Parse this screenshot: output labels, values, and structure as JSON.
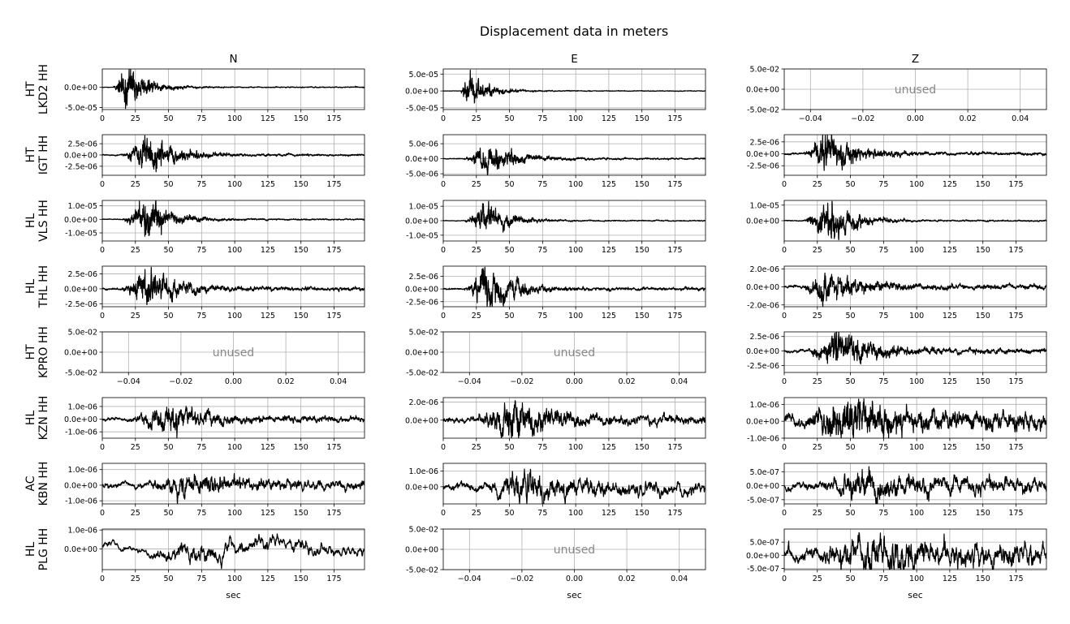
{
  "suptitle": "Displacement data in meters",
  "column_titles": [
    "N",
    "E",
    "Z"
  ],
  "xlabel": "sec",
  "unused_label": "unused",
  "station_labels": [
    [
      "HT",
      "LKD2 HH"
    ],
    [
      "HT",
      "IGT HH"
    ],
    [
      "HL",
      "VLS HH"
    ],
    [
      "HL",
      "THL HH"
    ],
    [
      "HT",
      "KPRO HH"
    ],
    [
      "HL",
      "KZN HH"
    ],
    [
      "AC",
      "KBN HH"
    ],
    [
      "HL",
      "PLG HH"
    ]
  ],
  "colors": {
    "trace": "#000000",
    "grid": "#b0b0b0",
    "unused_text": "#888888"
  },
  "chart_data": {
    "type": "line",
    "grid": true,
    "time_ticks": [
      0,
      25,
      50,
      75,
      100,
      125,
      150,
      175
    ],
    "time_tick_labels": [
      "0",
      "25",
      "50",
      "75",
      "100",
      "125",
      "150",
      "175"
    ],
    "time_range": [
      0,
      198
    ],
    "unused_xticks": [
      -0.04,
      -0.02,
      0,
      0.02,
      0.04
    ],
    "unused_xtick_labels": [
      "−0.04",
      "−0.02",
      "0.00",
      "0.02",
      "0.04"
    ],
    "unused_xlim": [
      -0.05,
      0.05
    ],
    "unused_yticks": [
      -0.05,
      0,
      0.05
    ],
    "unused_ytick_labels": [
      "-5.0e-02",
      "0.0e+00",
      "5.0e-02"
    ],
    "unused_ylim": [
      -0.05,
      0.05
    ],
    "panels": [
      [
        {
          "used": true,
          "ylim": [
            -5.5e-05,
            4.5e-05
          ],
          "yticks": [
            -5e-05,
            0
          ],
          "ytick_labels": [
            "-5.0e-05",
            "0.0e+00"
          ],
          "peak_time": 18,
          "onset": 8,
          "decay": 14,
          "noise": 0.02,
          "seed": 11,
          "osc": 0.8
        },
        {
          "used": true,
          "ylim": [
            -5.5e-05,
            6.5e-05
          ],
          "yticks": [
            -5e-05,
            0,
            5e-05
          ],
          "ytick_labels": [
            "-5.0e-05",
            "0.0e+00",
            "5.0e-05"
          ],
          "peak_time": 17,
          "onset": 13,
          "decay": 14,
          "noise": 0.02,
          "seed": 12,
          "osc": 0.8
        },
        {
          "used": false
        }
      ],
      [
        {
          "used": true,
          "ylim": [
            -4.5e-06,
            4.5e-06
          ],
          "yticks": [
            -2.5e-06,
            0,
            2.5e-06
          ],
          "ytick_labels": [
            "-2.5e-06",
            "0.0e+00",
            "2.5e-06"
          ],
          "peak_time": 33,
          "onset": 15,
          "decay": 20,
          "noise": 0.05,
          "seed": 21,
          "osc": 0.7
        },
        {
          "used": true,
          "ylim": [
            -5.5e-06,
            8e-06
          ],
          "yticks": [
            -5e-06,
            0,
            5e-06
          ],
          "ytick_labels": [
            "-5.0e-06",
            "0.0e+00",
            "5.0e-06"
          ],
          "peak_time": 34,
          "onset": 16,
          "decay": 20,
          "noise": 0.05,
          "seed": 22,
          "osc": 0.7
        },
        {
          "used": true,
          "ylim": [
            -4.5e-06,
            4e-06
          ],
          "yticks": [
            -2.5e-06,
            0,
            2.5e-06
          ],
          "ytick_labels": [
            "-2.5e-06",
            "0.0e+00",
            "2.5e-06"
          ],
          "peak_time": 32,
          "onset": 15,
          "decay": 20,
          "noise": 0.06,
          "seed": 23,
          "osc": 0.7
        }
      ],
      [
        {
          "used": true,
          "ylim": [
            -1.6e-05,
            1.4e-05
          ],
          "yticks": [
            -1e-05,
            0,
            1e-05
          ],
          "ytick_labels": [
            "-1.0e-05",
            "0.0e+00",
            "1.0e-05"
          ],
          "peak_time": 33,
          "onset": 15,
          "decay": 16,
          "noise": 0.03,
          "seed": 31,
          "osc": 0.7
        },
        {
          "used": true,
          "ylim": [
            -1.4e-05,
            1.4e-05
          ],
          "yticks": [
            -1e-05,
            0,
            1e-05
          ],
          "ytick_labels": [
            "-1.0e-05",
            "0.0e+00",
            "1.0e-05"
          ],
          "peak_time": 32,
          "onset": 15,
          "decay": 16,
          "noise": 0.03,
          "seed": 32,
          "osc": 0.7
        },
        {
          "used": true,
          "ylim": [
            -1.3e-05,
            1.3e-05
          ],
          "yticks": [
            0,
            1e-05
          ],
          "ytick_labels": [
            "0.0e+00",
            "1.0e-05"
          ],
          "peak_time": 33,
          "onset": 15,
          "decay": 16,
          "noise": 0.03,
          "seed": 33,
          "osc": 0.7
        }
      ],
      [
        {
          "used": true,
          "ylim": [
            -3e-06,
            3.8e-06
          ],
          "yticks": [
            -2.5e-06,
            0,
            2.5e-06
          ],
          "ytick_labels": [
            "-2.5e-06",
            "0.0e+00",
            "2.5e-06"
          ],
          "peak_time": 34,
          "onset": 15,
          "decay": 20,
          "noise": 0.08,
          "seed": 41,
          "osc": 0.6
        },
        {
          "used": true,
          "ylim": [
            -3.5e-06,
            4.5e-06
          ],
          "yticks": [
            -2.5e-06,
            0,
            2.5e-06
          ],
          "ytick_labels": [
            "-2.5e-06",
            "0.0e+00",
            "2.5e-06"
          ],
          "peak_time": 32,
          "onset": 16,
          "decay": 18,
          "noise": 0.06,
          "seed": 42,
          "osc": 0.6
        },
        {
          "used": true,
          "ylim": [
            -2.2e-06,
            2.3e-06
          ],
          "yticks": [
            -2e-06,
            0,
            2e-06
          ],
          "ytick_labels": [
            "-2.0e-06",
            "0.0e+00",
            "2.0e-06"
          ],
          "peak_time": 30,
          "onset": 14,
          "decay": 22,
          "noise": 0.12,
          "seed": 43,
          "osc": 0.6
        }
      ],
      [
        {
          "used": false
        },
        {
          "used": false
        },
        {
          "used": true,
          "ylim": [
            -3.7e-06,
            3.3e-06
          ],
          "yticks": [
            -2.5e-06,
            0,
            2.5e-06
          ],
          "ytick_labels": [
            "-2.5e-06",
            "0.0e+00",
            "2.5e-06"
          ],
          "peak_time": 40,
          "onset": 18,
          "decay": 22,
          "noise": 0.1,
          "seed": 53,
          "osc": 0.6
        }
      ],
      [
        {
          "used": true,
          "ylim": [
            -1.5e-06,
            1.7e-06
          ],
          "yticks": [
            -1e-06,
            0,
            1e-06
          ],
          "ytick_labels": [
            "-1.0e-06",
            "0.0e+00",
            "1.0e-06"
          ],
          "peak_time": 50,
          "onset": 20,
          "decay": 25,
          "noise": 0.2,
          "seed": 61,
          "osc": 0.5
        },
        {
          "used": true,
          "ylim": [
            -2e-06,
            2.5e-06
          ],
          "yticks": [
            0,
            2e-06
          ],
          "ytick_labels": [
            "0.0e+00",
            "2.0e-06"
          ],
          "peak_time": 50,
          "onset": 25,
          "decay": 25,
          "noise": 0.15,
          "seed": 62,
          "osc": 0.5
        },
        {
          "used": true,
          "ylim": [
            -1e-06,
            1.4e-06
          ],
          "yticks": [
            -1e-06,
            0,
            1e-06
          ],
          "ytick_labels": [
            "-1.0e-06",
            "0.0e+00",
            "1.0e-06"
          ],
          "peak_time": 48,
          "onset": 20,
          "decay": 25,
          "noise": 0.3,
          "seed": 63,
          "osc": 0.5
        }
      ],
      [
        {
          "used": true,
          "ylim": [
            -1.2e-06,
            1.4e-06
          ],
          "yticks": [
            -1e-06,
            0,
            1e-06
          ],
          "ytick_labels": [
            "-1.0e-06",
            "0.0e+00",
            "1.0e-06"
          ],
          "peak_time": 60,
          "onset": 35,
          "decay": 30,
          "noise": 0.35,
          "seed": 71,
          "osc": 0.4
        },
        {
          "used": true,
          "ylim": [
            -1.1e-06,
            1.5e-06
          ],
          "yticks": [
            0,
            1e-06
          ],
          "ytick_labels": [
            "0.0e+00",
            "1.0e-06"
          ],
          "peak_time": 58,
          "onset": 35,
          "decay": 30,
          "noise": 0.3,
          "seed": 72,
          "osc": 0.4,
          "trend": -3e-07
        },
        {
          "used": true,
          "ylim": [
            -6.5e-07,
            8e-07
          ],
          "yticks": [
            -5e-07,
            0,
            5e-07
          ],
          "ytick_labels": [
            "-5.0e-07",
            "0.0e+00",
            "5.0e-07"
          ],
          "peak_time": 62,
          "onset": 30,
          "decay": 30,
          "noise": 0.4,
          "seed": 73,
          "osc": 0.4
        }
      ],
      [
        {
          "used": true,
          "ylim": [
            -1.1e-06,
            1.05e-06
          ],
          "yticks": [
            0,
            1e-06
          ],
          "ytick_labels": [
            "0.0e+00",
            "1.0e-06"
          ],
          "peak_time": 65,
          "onset": 35,
          "decay": 40,
          "noise": 0.4,
          "seed": 81,
          "osc": 0.25,
          "wander": 5e-07
        },
        {
          "used": false
        },
        {
          "used": true,
          "ylim": [
            -5.5e-07,
            1e-06
          ],
          "yticks": [
            -5e-07,
            0,
            5e-07
          ],
          "ytick_labels": [
            "-5.0e-07",
            "0.0e+00",
            "5.0e-07"
          ],
          "peak_time": 65,
          "onset": 30,
          "decay": 35,
          "noise": 0.45,
          "seed": 83,
          "osc": 0.4
        }
      ]
    ]
  }
}
